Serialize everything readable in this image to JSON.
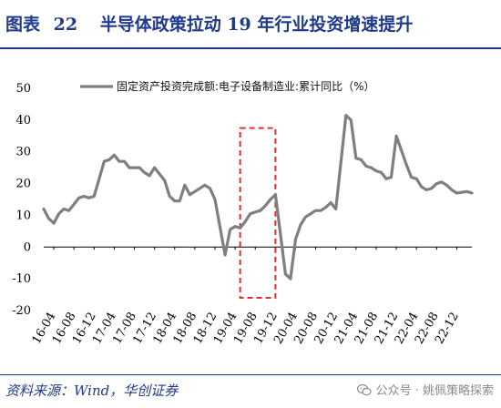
{
  "header": {
    "label": "图表",
    "number": "22",
    "title": "半导体政策拉动 19 年行业投资增速提升"
  },
  "footer": {
    "source": "资料来源：Wind，华创证券",
    "watermark": "公众号 · 姚佩策略探索"
  },
  "chart_data": {
    "type": "line",
    "title": "",
    "xlabel": "",
    "ylabel": "",
    "ylim": [
      -20,
      50
    ],
    "yticks": [
      -20,
      -10,
      0,
      10,
      20,
      30,
      40,
      50
    ],
    "x_tick_labels": [
      "16-04",
      "16-08",
      "16-12",
      "17-04",
      "17-08",
      "17-12",
      "18-04",
      "18-08",
      "18-12",
      "19-04",
      "19-08",
      "19-12",
      "20-04",
      "20-08",
      "20-12",
      "21-04",
      "21-08",
      "21-12",
      "22-04",
      "22-08",
      "22-12"
    ],
    "legend": {
      "placement": "top-center",
      "entries": [
        "固定资产投资完成额:电子设备制造业:累计同比（%）"
      ]
    },
    "series": [
      {
        "name": "固定资产投资完成额:电子设备制造业:累计同比（%）",
        "color": "#7f7f7f",
        "x": [
          "2016-02",
          "2016-03",
          "2016-04",
          "2016-05",
          "2016-06",
          "2016-07",
          "2016-08",
          "2016-09",
          "2016-10",
          "2016-11",
          "2016-12",
          "2017-02",
          "2017-03",
          "2017-04",
          "2017-05",
          "2017-06",
          "2017-07",
          "2017-08",
          "2017-09",
          "2017-10",
          "2017-11",
          "2017-12",
          "2018-02",
          "2018-03",
          "2018-04",
          "2018-05",
          "2018-06",
          "2018-07",
          "2018-08",
          "2018-09",
          "2018-10",
          "2018-11",
          "2018-12",
          "2019-02",
          "2019-03",
          "2019-04",
          "2019-05",
          "2019-06",
          "2019-07",
          "2019-08",
          "2019-09",
          "2019-10",
          "2019-11",
          "2019-12",
          "2020-02",
          "2020-03",
          "2020-04",
          "2020-05",
          "2020-06",
          "2020-07",
          "2020-08",
          "2020-09",
          "2020-10",
          "2020-11",
          "2020-12",
          "2021-02",
          "2021-03",
          "2021-04",
          "2021-05",
          "2021-06",
          "2021-07",
          "2021-08",
          "2021-09",
          "2021-10",
          "2021-11",
          "2021-12",
          "2022-02",
          "2022-03",
          "2022-04",
          "2022-05",
          "2022-06",
          "2022-07",
          "2022-08",
          "2022-09",
          "2022-10",
          "2022-11",
          "2022-12",
          "2023-02",
          "2023-03"
        ],
        "values": [
          12.0,
          9.0,
          7.5,
          10.5,
          12.0,
          11.5,
          13.5,
          15.5,
          16.0,
          15.5,
          16.0,
          27.0,
          27.5,
          29.0,
          27.0,
          27.0,
          25.0,
          25.0,
          25.0,
          23.5,
          22.5,
          25.0,
          21.0,
          16.0,
          14.5,
          14.5,
          19.5,
          16.5,
          17.5,
          18.5,
          19.5,
          18.5,
          15.0,
          -2.5,
          5.5,
          6.5,
          6.0,
          8.0,
          10.5,
          11.0,
          11.5,
          13.0,
          15.0,
          16.5,
          -8.5,
          -10.0,
          2.5,
          7.0,
          9.5,
          10.5,
          11.5,
          11.5,
          12.5,
          14.0,
          12.0,
          41.5,
          40.0,
          28.0,
          27.5,
          25.5,
          25.0,
          24.0,
          23.5,
          21.5,
          22.0,
          35.0,
          26.0,
          22.0,
          21.5,
          19.0,
          18.0,
          18.5,
          20.0,
          20.5,
          19.5,
          18.0,
          17.0,
          17.5,
          17.0
        ]
      }
    ],
    "annotation": {
      "type": "dashed-box",
      "color": "#e8302a",
      "x_from": "2019-05",
      "x_to": "2019-12",
      "y_from": -16,
      "y_to": 37.5
    }
  }
}
